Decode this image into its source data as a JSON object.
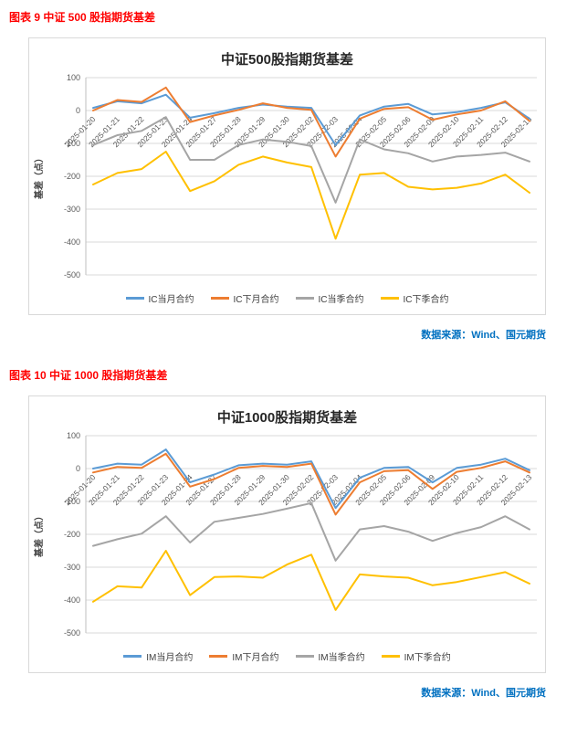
{
  "figure9": {
    "caption": "图表 9  中证 500 股指期货基差",
    "source": "数据来源：Wind、国元期货"
  },
  "figure10": {
    "caption": "图表 10  中证 1000 股指期货基差",
    "source": "数据来源：Wind、国元期货"
  },
  "colors": {
    "caption": "#FF0000",
    "source": "#0070C0",
    "grid": "#D9D9D9",
    "axis_text": "#595959"
  },
  "chart_data": [
    {
      "type": "line",
      "title": "中证500股指期货基差",
      "ylabel": "基差（点）",
      "xlabel": "",
      "ylim": [
        -500,
        100
      ],
      "ytick_interval": 100,
      "ytick_labels": [
        "100",
        "0",
        "-100",
        "-200",
        "-300",
        "-400",
        "-500"
      ],
      "grid": true,
      "legend_position": "bottom",
      "x": [
        "2025-01-20",
        "2025-01-21",
        "2025-01-22",
        "2025-01-23",
        "2025-01-24",
        "2025-01-27",
        "2025-01-28",
        "2025-01-29",
        "2025-01-30",
        "2025-02-02",
        "2025-02-03",
        "2025-02-04",
        "2025-02-05",
        "2025-02-06",
        "2025-02-09",
        "2025-02-10",
        "2025-02-11",
        "2025-02-12",
        "2025-02-13"
      ],
      "series": [
        {
          "name": "IC当月合约",
          "color": "#5B9BD5",
          "values": [
            8,
            28,
            22,
            48,
            -22,
            -8,
            8,
            18,
            12,
            8,
            -105,
            -15,
            12,
            20,
            -12,
            -5,
            8,
            25,
            -25
          ]
        },
        {
          "name": "IC下月合约",
          "color": "#ED7D31",
          "values": [
            0,
            32,
            26,
            70,
            -35,
            -15,
            2,
            22,
            8,
            2,
            -140,
            -25,
            5,
            10,
            -28,
            -12,
            0,
            28,
            -32
          ]
        },
        {
          "name": "IC当季合约",
          "color": "#A5A5A5",
          "values": [
            -105,
            -75,
            -62,
            -20,
            -150,
            -150,
            -105,
            -88,
            -95,
            -108,
            -280,
            -88,
            -118,
            -130,
            -155,
            -140,
            -135,
            -128,
            -155
          ]
        },
        {
          "name": "IC下季合约",
          "color": "#FFC000",
          "values": [
            -225,
            -190,
            -178,
            -125,
            -245,
            -215,
            -165,
            -140,
            -158,
            -172,
            -390,
            -195,
            -190,
            -232,
            -240,
            -235,
            -222,
            -195,
            -250
          ]
        }
      ]
    },
    {
      "type": "line",
      "title": "中证1000股指期货基差",
      "ylabel": "基差（点）",
      "xlabel": "",
      "ylim": [
        -500,
        100
      ],
      "ytick_interval": 100,
      "ytick_labels": [
        "100",
        "0",
        "-100",
        "-200",
        "-300",
        "-400",
        "-500"
      ],
      "grid": true,
      "legend_position": "bottom",
      "x": [
        "2025-01-20",
        "2025-01-21",
        "2025-01-22",
        "2025-01-23",
        "2025-01-24",
        "2025-01-27",
        "2025-01-28",
        "2025-01-29",
        "2025-01-30",
        "2025-02-02",
        "2025-02-03",
        "2025-02-04",
        "2025-02-05",
        "2025-02-06",
        "2025-02-09",
        "2025-02-10",
        "2025-02-11",
        "2025-02-12",
        "2025-02-13"
      ],
      "series": [
        {
          "name": "IM当月合约",
          "color": "#5B9BD5",
          "values": [
            0,
            15,
            12,
            58,
            -42,
            -18,
            10,
            15,
            12,
            22,
            -120,
            -28,
            2,
            5,
            -42,
            2,
            12,
            30,
            -5
          ]
        },
        {
          "name": "IM下月合约",
          "color": "#ED7D31",
          "values": [
            -12,
            5,
            2,
            45,
            -55,
            -32,
            2,
            8,
            5,
            15,
            -140,
            -42,
            -8,
            -5,
            -62,
            -10,
            2,
            22,
            -12
          ]
        },
        {
          "name": "IM当季合约",
          "color": "#A5A5A5",
          "values": [
            -235,
            -215,
            -198,
            -145,
            -225,
            -162,
            -150,
            -138,
            -122,
            -105,
            -280,
            -185,
            -175,
            -192,
            -220,
            -196,
            -178,
            -145,
            -185
          ]
        },
        {
          "name": "IM下季合约",
          "color": "#FFC000",
          "values": [
            -405,
            -358,
            -362,
            -250,
            -385,
            -330,
            -328,
            -332,
            -292,
            -262,
            -430,
            -322,
            -328,
            -332,
            -355,
            -345,
            -330,
            -315,
            -350
          ]
        }
      ]
    }
  ]
}
